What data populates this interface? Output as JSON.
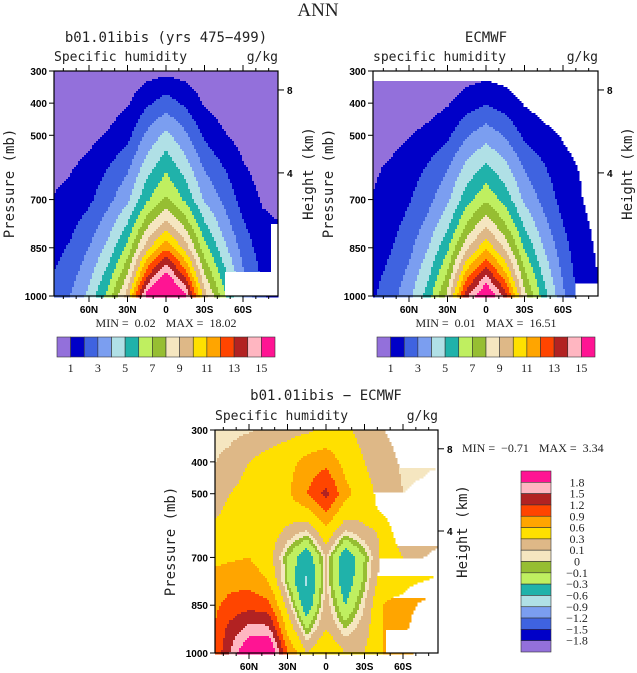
{
  "page_title": "ANN",
  "colors": [
    "#9370DB",
    "#0000C8",
    "#3F63E0",
    "#7B9EF0",
    "#B0E0E6",
    "#20B2AA",
    "#BFEF60",
    "#96BE32",
    "#F5E6C0",
    "#DEB887",
    "#FFE000",
    "#FFA500",
    "#FF4500",
    "#B22222",
    "#FFB6C1",
    "#FF1493"
  ],
  "chart_data": [
    {
      "type": "heatmap",
      "style": "filled-contour",
      "title": "b01.01ibis (yrs 475−499)",
      "subtitle": "Specific humidity",
      "units": "g/kg",
      "ylabel": "Pressure (mb)",
      "ylabel_right": "Height (km)",
      "min_label": "MIN =",
      "min": "0.02",
      "max_label": "MAX =",
      "max": "18.02",
      "ylim": [
        1000,
        300
      ],
      "yticks": [
        "300",
        "400",
        "500",
        "700",
        "850",
        "1000"
      ],
      "right_ticks": [
        {
          "label": "8",
          "p": 359
        },
        {
          "label": "4",
          "p": 617
        }
      ],
      "xticks": [
        {
          "label": "60N",
          "lat": 60
        },
        {
          "label": "30N",
          "lat": 30
        },
        {
          "label": "0",
          "lat": 0
        },
        {
          "label": "30S",
          "lat": -30
        },
        {
          "label": "60S",
          "lat": -60
        }
      ],
      "levels": [
        1,
        2,
        3,
        4,
        5,
        6,
        7,
        8,
        9,
        10,
        11,
        12,
        13,
        14,
        15
      ],
      "colorbar_labels": [
        {
          "label": "1",
          "value": 1
        },
        {
          "label": "3",
          "value": 3
        },
        {
          "label": "5",
          "value": 5
        },
        {
          "label": "7",
          "value": 7
        },
        {
          "label": "9",
          "value": 9
        },
        {
          "label": "11",
          "value": 11
        },
        {
          "label": "13",
          "value": 13
        },
        {
          "label": "15",
          "value": 15
        }
      ],
      "lats": [
        90,
        75,
        60,
        45,
        30,
        15,
        0,
        -15,
        -30,
        -45,
        -60,
        -75,
        -90
      ],
      "pressures": [
        300,
        400,
        500,
        600,
        700,
        775,
        850,
        925,
        1000
      ],
      "values": [
        [
          0.05,
          0.05,
          0.1,
          0.2,
          0.35,
          0.6,
          0.7,
          0.6,
          0.35,
          0.2,
          0.1,
          0.05,
          0.05
        ],
        [
          0.15,
          0.2,
          0.3,
          0.5,
          0.9,
          1.8,
          2.5,
          1.8,
          0.9,
          0.5,
          0.3,
          0.15,
          0.1
        ],
        [
          0.35,
          0.45,
          0.7,
          1.1,
          1.7,
          3.2,
          4.3,
          3.2,
          1.8,
          1.1,
          0.6,
          0.35,
          0.3
        ],
        [
          0.7,
          0.9,
          1.3,
          2.0,
          2.8,
          4.5,
          5.8,
          4.5,
          2.9,
          2.0,
          1.1,
          0.6,
          0.5
        ],
        [
          1.0,
          1.3,
          1.8,
          2.7,
          3.8,
          5.8,
          7.2,
          5.8,
          3.9,
          2.8,
          1.6,
          0.9,
          0.7
        ],
        [
          1.3,
          1.7,
          2.4,
          3.5,
          5.0,
          7.6,
          9.4,
          7.6,
          5.1,
          3.5,
          2.1,
          1.2,
          1.0
        ],
        [
          1.6,
          2.1,
          3.0,
          4.3,
          6.3,
          9.6,
          11.8,
          9.6,
          6.4,
          4.3,
          2.6,
          1.5,
          1.2
        ],
        [
          1.9,
          2.5,
          3.6,
          5.3,
          7.8,
          12.4,
          15.0,
          12.3,
          7.9,
          5.3,
          3.1,
          1.8,
          1.4
        ],
        [
          2.2,
          3.0,
          4.3,
          6.4,
          9.5,
          15.5,
          18.0,
          15.3,
          9.5,
          6.4,
          3.8,
          2.1,
          1.6
        ]
      ]
    },
    {
      "type": "heatmap",
      "style": "filled-contour",
      "title": "ECMWF",
      "subtitle": "specific humidity",
      "units": "g/kg",
      "ylabel": "Pressure (mb)",
      "ylabel_right": "Height (km)",
      "min_label": "MIN =",
      "min": "0.01",
      "max_label": "MAX =",
      "max": "16.51",
      "ylim": [
        1000,
        300
      ],
      "yticks": [
        "300",
        "400",
        "500",
        "700",
        "850",
        "1000"
      ],
      "right_ticks": [
        {
          "label": "8",
          "p": 359
        },
        {
          "label": "4",
          "p": 617
        }
      ],
      "xticks": [
        {
          "label": "60N",
          "lat": 60
        },
        {
          "label": "30N",
          "lat": 30
        },
        {
          "label": "0",
          "lat": 0
        },
        {
          "label": "30S",
          "lat": -30
        },
        {
          "label": "60S",
          "lat": -60
        }
      ],
      "levels": [
        1,
        2,
        3,
        4,
        5,
        6,
        7,
        8,
        9,
        10,
        11,
        12,
        13,
        14,
        15
      ],
      "colorbar_labels": [
        {
          "label": "1",
          "value": 1
        },
        {
          "label": "3",
          "value": 3
        },
        {
          "label": "5",
          "value": 5
        },
        {
          "label": "7",
          "value": 7
        },
        {
          "label": "9",
          "value": 9
        },
        {
          "label": "11",
          "value": 11
        },
        {
          "label": "13",
          "value": 13
        },
        {
          "label": "15",
          "value": 15
        }
      ],
      "lats": [
        90,
        75,
        60,
        45,
        30,
        15,
        0,
        -15,
        -30,
        -45,
        -60,
        -75,
        -90
      ],
      "pressures": [
        300,
        400,
        500,
        600,
        700,
        775,
        850,
        925,
        1000
      ],
      "values": [
        [
          0.05,
          0.05,
          0.1,
          0.15,
          0.3,
          0.5,
          0.6,
          0.5,
          0.3,
          0.15,
          0.08,
          0.05,
          0.05
        ],
        [
          0.2,
          0.25,
          0.35,
          0.55,
          0.9,
          1.5,
          1.9,
          1.5,
          0.9,
          0.55,
          0.35,
          0.2,
          0.15
        ],
        [
          0.55,
          0.7,
          0.95,
          1.3,
          1.8,
          2.9,
          3.6,
          2.9,
          1.8,
          1.3,
          0.9,
          0.6,
          0.5
        ],
        [
          0.85,
          1.1,
          1.5,
          2.1,
          2.9,
          4.3,
          5.2,
          4.3,
          2.9,
          2.1,
          1.3,
          0.9,
          0.7
        ],
        [
          1.0,
          1.3,
          1.9,
          2.7,
          3.8,
          5.6,
          6.8,
          5.6,
          3.8,
          2.7,
          1.6,
          1.0,
          0.75
        ],
        [
          1.2,
          1.6,
          2.3,
          3.3,
          4.7,
          7.0,
          8.7,
          7.0,
          4.8,
          3.3,
          2.0,
          1.1,
          0.8
        ],
        [
          1.4,
          1.9,
          2.7,
          4.0,
          5.8,
          8.8,
          10.8,
          8.8,
          5.9,
          4.0,
          2.4,
          1.2,
          0.85
        ],
        [
          1.6,
          2.2,
          3.2,
          4.7,
          7.0,
          11.2,
          13.6,
          11.0,
          7.1,
          4.7,
          2.8,
          1.3,
          0.9
        ],
        [
          1.8,
          2.5,
          3.7,
          5.5,
          8.3,
          13.8,
          16.5,
          13.6,
          8.4,
          5.5,
          3.2,
          1.4,
          0.95
        ]
      ]
    },
    {
      "type": "heatmap",
      "style": "filled-contour",
      "title": "b01.01ibis − ECMWF",
      "subtitle": "Specific humidity",
      "units": "g/kg",
      "ylabel": "Pressure (mb)",
      "ylabel_right": "Height (km)",
      "min_label": "MIN =",
      "min": "−0.71",
      "max_label": "MAX =",
      "max": "3.34",
      "ylim": [
        1000,
        300
      ],
      "yticks": [
        "300",
        "400",
        "500",
        "700",
        "850",
        "1000"
      ],
      "right_ticks": [
        {
          "label": "8",
          "p": 359
        },
        {
          "label": "4",
          "p": 617
        }
      ],
      "xticks": [
        {
          "label": "60N",
          "lat": 60
        },
        {
          "label": "30N",
          "lat": 30
        },
        {
          "label": "0",
          "lat": 0
        },
        {
          "label": "30S",
          "lat": -30
        },
        {
          "label": "60S",
          "lat": -60
        }
      ],
      "levels": [
        -1.8,
        -1.5,
        -1.2,
        -0.9,
        -0.6,
        -0.3,
        -0.1,
        0,
        0.1,
        0.3,
        0.6,
        0.9,
        1.2,
        1.5,
        1.8
      ],
      "colorbar_labels": [
        {
          "label": "1.8",
          "value": 1.8
        },
        {
          "label": "1.5",
          "value": 1.5
        },
        {
          "label": "1.2",
          "value": 1.2
        },
        {
          "label": "0.9",
          "value": 0.9
        },
        {
          "label": "0.6",
          "value": 0.6
        },
        {
          "label": "0.3",
          "value": 0.3
        },
        {
          "label": "0.1",
          "value": 0.1
        },
        {
          "label": "0",
          "value": 0
        },
        {
          "label": "−0.1",
          "value": -0.1
        },
        {
          "label": "−0.3",
          "value": -0.3
        },
        {
          "label": "−0.6",
          "value": -0.6
        },
        {
          "label": "−0.9",
          "value": -0.9
        },
        {
          "label": "−1.2",
          "value": -1.2
        },
        {
          "label": "−1.5",
          "value": -1.5
        },
        {
          "label": "−1.8",
          "value": -1.8
        }
      ],
      "lats": [
        90,
        75,
        60,
        45,
        30,
        15,
        0,
        -15,
        -30,
        -45,
        -60,
        -75,
        -90
      ],
      "pressures": [
        300,
        400,
        500,
        600,
        700,
        775,
        850,
        925,
        1000
      ],
      "values": [
        [
          0.05,
          0.05,
          0.08,
          0.15,
          0.2,
          0.25,
          0.35,
          0.35,
          0.2,
          0.1,
          0.05,
          0.05,
          0.05
        ],
        [
          0.08,
          0.15,
          0.3,
          0.4,
          0.5,
          0.7,
          0.8,
          0.5,
          0.3,
          0.15,
          0.08,
          0.08,
          0.08
        ],
        [
          0.15,
          0.3,
          0.4,
          0.45,
          0.55,
          0.9,
          1.3,
          0.7,
          0.4,
          0.2,
          0.1,
          0.12,
          0.2
        ],
        [
          0.3,
          0.4,
          0.45,
          0.5,
          0.3,
          0.2,
          0.6,
          0.2,
          0.3,
          0.35,
          0.2,
          0.15,
          0.25
        ],
        [
          0.5,
          0.55,
          0.6,
          0.4,
          -0.1,
          -0.5,
          0.1,
          -0.5,
          -0.1,
          0.4,
          0.3,
          0.3,
          0.35
        ],
        [
          0.7,
          0.8,
          0.8,
          0.6,
          -0.1,
          -0.65,
          0.1,
          -0.5,
          -0.05,
          0.5,
          0.5,
          0.6,
          0.7
        ],
        [
          0.8,
          1.0,
          1.1,
          1.0,
          0.2,
          -0.5,
          0.2,
          -0.3,
          0.1,
          0.6,
          0.7,
          1.0,
          1.0
        ],
        [
          0.8,
          1.3,
          1.6,
          1.6,
          0.5,
          -0.1,
          0.3,
          0.0,
          0.2,
          0.6,
          0.8,
          1.2,
          1.0
        ],
        [
          0.8,
          1.5,
          2.2,
          2.4,
          0.9,
          0.3,
          0.6,
          0.3,
          0.3,
          0.6,
          0.8,
          1.0,
          1.0
        ]
      ]
    }
  ]
}
